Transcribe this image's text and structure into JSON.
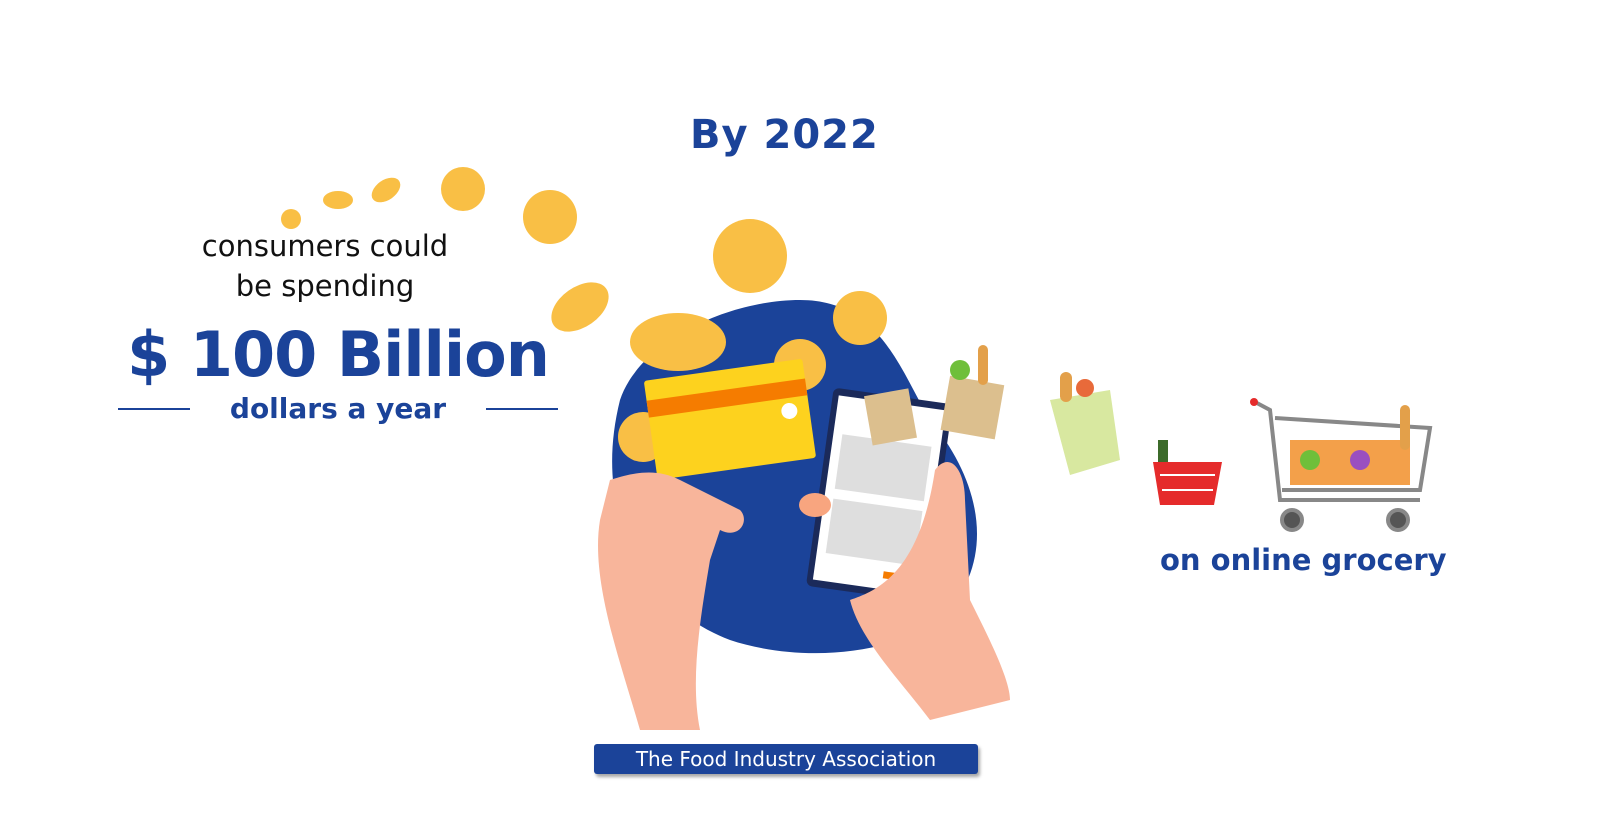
{
  "headline": "By 2022",
  "subtitle_line1": "consumers could",
  "subtitle_line2": "be spending",
  "amount": "$ 100 Billion",
  "unit": "dollars a year",
  "category": "on online grocery",
  "source": "The Food Industry Association",
  "colors": {
    "brand_blue": "#1b4399",
    "coin": "#f9bf45",
    "card": "#fdd21e",
    "card_stripe": "#f57c00",
    "skin": "#f8b59b"
  },
  "illustration": {
    "icons": [
      "coin-icon",
      "credit-card-icon",
      "smartphone-icon",
      "hand-icon",
      "grocery-bag-icon",
      "shopping-basket-icon",
      "shopping-cart-icon"
    ]
  }
}
